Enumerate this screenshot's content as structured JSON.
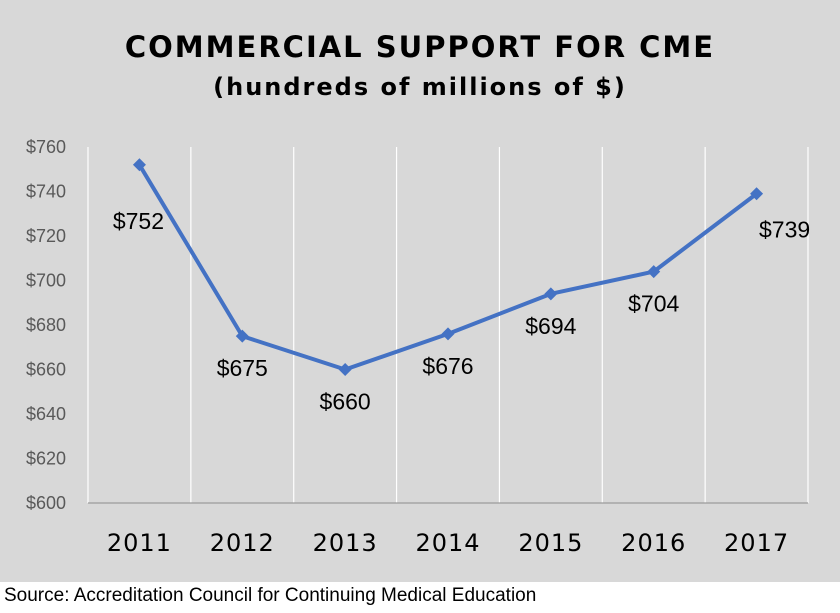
{
  "chart_data": {
    "type": "line",
    "title": "COMMERCIAL SUPPORT FOR CME",
    "subtitle": "(hundreds of millions of $)",
    "categories": [
      "2011",
      "2012",
      "2013",
      "2014",
      "2015",
      "2016",
      "2017"
    ],
    "series": [
      {
        "values": [
          752,
          675,
          660,
          676,
          694,
          704,
          739
        ]
      }
    ],
    "data_labels": [
      "$752",
      "$675",
      "$660",
      "$676",
      "$694",
      "$704",
      "$739"
    ],
    "y_ticks": [
      "$600",
      "$620",
      "$640",
      "$660",
      "$680",
      "$700",
      "$720",
      "$740",
      "$760"
    ],
    "ylim": [
      600,
      760
    ],
    "grid": "vertical",
    "legend": "none",
    "colors": {
      "series": "#4472c4",
      "background": "#d8d8d8",
      "grid": "#ffffff"
    }
  },
  "source": "Source: Accreditation Council for Continuing Medical Education"
}
